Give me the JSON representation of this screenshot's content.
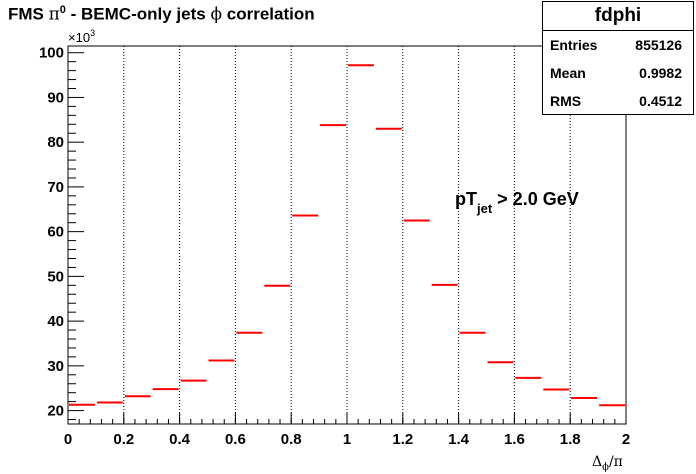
{
  "title": {
    "prefix": "FMS ",
    "pi_symbol": "π",
    "pi_superscript": "0",
    "middle": " - BEMC-only jets ",
    "phi_symbol": "ϕ",
    "suffix": " correlation"
  },
  "stats": {
    "name": "fdphi",
    "rows": [
      {
        "label": "Entries",
        "value": "855126"
      },
      {
        "label": "Mean",
        "value": "0.9982"
      },
      {
        "label": "RMS",
        "value": "0.4512"
      }
    ]
  },
  "chart_data": {
    "type": "histogram",
    "x": [
      0.05,
      0.15,
      0.25,
      0.35,
      0.45,
      0.55,
      0.65,
      0.75,
      0.85,
      0.95,
      1.05,
      1.15,
      1.25,
      1.35,
      1.45,
      1.55,
      1.65,
      1.75,
      1.85,
      1.95
    ],
    "values": [
      21.3,
      21.8,
      23.2,
      24.8,
      26.7,
      31.2,
      37.4,
      47.9,
      63.6,
      83.8,
      97.2,
      83.0,
      62.5,
      48.1,
      37.4,
      30.8,
      27.3,
      24.7,
      22.8,
      21.2
    ],
    "bin_width": 0.1,
    "xlim": [
      0,
      2
    ],
    "ylim": [
      17,
      101.5
    ],
    "xticks": [
      "0",
      "0.2",
      "0.4",
      "0.6",
      "0.8",
      "1",
      "1.2",
      "1.4",
      "1.6",
      "1.8",
      "2"
    ],
    "yticks": [
      "20",
      "30",
      "40",
      "50",
      "60",
      "70",
      "80",
      "90",
      "100"
    ],
    "y_multiplier_base": "×10",
    "y_multiplier_exp": "3",
    "xlabel_main": "Δ",
    "xlabel_sub": "ϕ",
    "xlabel_tail": "/π",
    "annotation_main": "pT",
    "annotation_sub": "jet",
    "annotation_tail": " > 2.0 GeV",
    "grid_x": true,
    "marker_color": "#ff0000"
  }
}
